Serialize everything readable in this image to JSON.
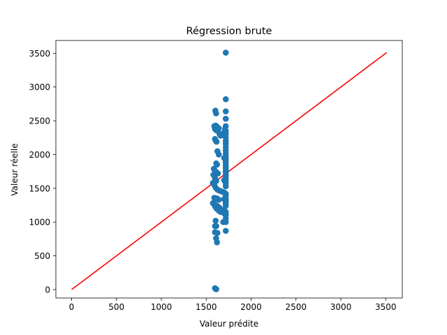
{
  "chart_data": {
    "type": "scatter",
    "title": "Régression brute",
    "xlabel": "Valeur prédite",
    "ylabel": "Valeur réelle",
    "xlim": [
      -175,
      3685
    ],
    "ylim": [
      -125,
      3690
    ],
    "x_ticks": [
      0,
      500,
      1000,
      1500,
      2000,
      2500,
      3000,
      3500
    ],
    "y_ticks": [
      0,
      500,
      1000,
      1500,
      2000,
      2500,
      3000,
      3500
    ],
    "grid": false,
    "colors": {
      "points": "#1f77b4",
      "line": "#ff0000"
    },
    "reference_line": {
      "x": [
        0,
        3510
      ],
      "y": [
        0,
        3510
      ]
    },
    "series": [
      {
        "x": [
          1718,
          1718,
          1602,
          1610,
          1718,
          1718,
          1605,
          1615,
          1625,
          1640,
          1590,
          1598,
          1612,
          1630,
          1650,
          1660,
          1680,
          1690,
          1700,
          1710,
          1718,
          1718,
          1718,
          1718,
          1718,
          1598,
          1605,
          1615,
          1718,
          1718,
          1718,
          1625,
          1640,
          1718,
          1718,
          1700,
          1718,
          1718,
          1612,
          1620,
          1718,
          1718,
          1718,
          1718,
          1585,
          1598,
          1612,
          1630,
          1718,
          1718,
          1718,
          1718,
          1580,
          1598,
          1612,
          1700,
          1718,
          1718,
          1718,
          1575,
          1590,
          1605,
          1625,
          1640,
          1660,
          1680,
          1700,
          1718,
          1718,
          1718,
          1718,
          1590,
          1605,
          1620,
          1640,
          1700,
          1718,
          1718,
          1718,
          1718,
          1575,
          1590,
          1610,
          1630,
          1650,
          1700,
          1718,
          1718,
          1600,
          1615,
          1640,
          1660,
          1700,
          1718,
          1718,
          1718,
          1605,
          1690,
          1718,
          1598,
          1612,
          1598,
          1625,
          1610,
          1620,
          1598,
          1605,
          1612
        ],
        "y": [
          3510,
          2820,
          2650,
          2610,
          2640,
          2530,
          2430,
          2420,
          2400,
          2390,
          2420,
          2380,
          2360,
          2350,
          2300,
          2280,
          2300,
          2310,
          2330,
          2380,
          2420,
          2350,
          2300,
          2250,
          2200,
          2230,
          2210,
          2190,
          2160,
          2110,
          2060,
          2050,
          2000,
          2010,
          1970,
          1950,
          1930,
          1900,
          1870,
          1850,
          1870,
          1830,
          1800,
          1760,
          1790,
          1760,
          1740,
          1720,
          1740,
          1700,
          1680,
          1640,
          1700,
          1650,
          1610,
          1620,
          1610,
          1570,
          1530,
          1580,
          1550,
          1510,
          1480,
          1470,
          1460,
          1450,
          1440,
          1420,
          1400,
          1390,
          1350,
          1360,
          1340,
          1350,
          1330,
          1340,
          1320,
          1300,
          1270,
          1240,
          1280,
          1260,
          1250,
          1230,
          1210,
          1180,
          1150,
          1100,
          1230,
          1200,
          1170,
          1150,
          1130,
          1110,
          1050,
          1000,
          1020,
          1000,
          870,
          940,
          940,
          850,
          840,
          760,
          700,
          20,
          10,
          5
        ]
      }
    ]
  }
}
